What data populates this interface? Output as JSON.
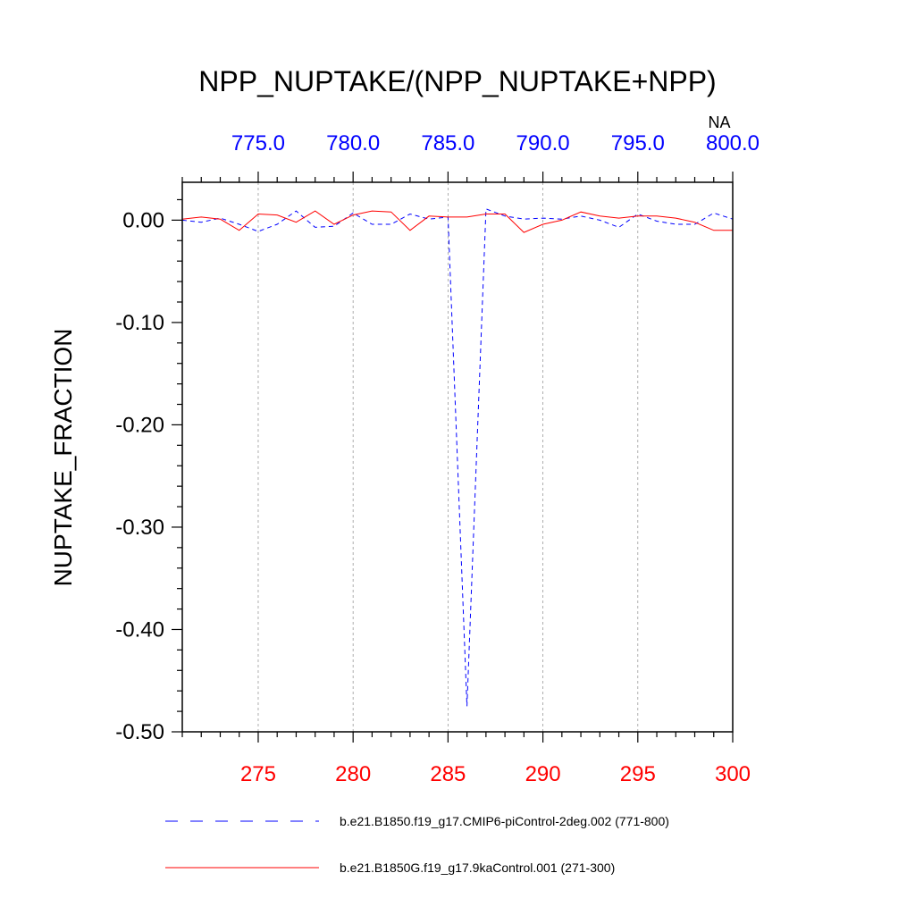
{
  "chart_data": {
    "type": "line",
    "title": "NPP_NUPTAKE/(NPP_NUPTAKE+NPP)",
    "ylabel": "NUPTAKE_FRACTION",
    "top_axis_annotation": "NA",
    "ylim": [
      -0.5,
      0.037
    ],
    "yticks": [
      0.0,
      -0.1,
      -0.2,
      -0.3,
      -0.4,
      -0.5
    ],
    "ytick_labels": [
      "0.00",
      "-0.10",
      "-0.20",
      "-0.30",
      "-0.40",
      "-0.50"
    ],
    "x_bottom": {
      "range": [
        271,
        300
      ],
      "ticks": [
        275,
        280,
        285,
        290,
        295,
        300
      ],
      "tick_labels": [
        "275",
        "280",
        "285",
        "290",
        "295",
        "300"
      ],
      "color": "#ff0000"
    },
    "x_top": {
      "range": [
        771,
        800
      ],
      "ticks": [
        775,
        780,
        785,
        790,
        795,
        800
      ],
      "tick_labels": [
        "775.0",
        "780.0",
        "785.0",
        "790.0",
        "795.0",
        "800.0"
      ],
      "color": "#0000ff"
    },
    "grid": "vertical dashed at major x ticks",
    "series": [
      {
        "name": "b.e21.B1850.f19_g17.CMIP6-piControl-2deg.002 (771-800)",
        "axis": "top",
        "color": "#0000ff",
        "dash": "dashed",
        "x": [
          771,
          772,
          773,
          774,
          775,
          776,
          777,
          778,
          779,
          780,
          781,
          782,
          783,
          784,
          785,
          786,
          787,
          788,
          789,
          790,
          791,
          792,
          793,
          794,
          795,
          796,
          797,
          798,
          799,
          800
        ],
        "values": [
          0.0,
          -0.002,
          0.002,
          -0.004,
          -0.011,
          -0.004,
          0.009,
          -0.007,
          -0.006,
          0.007,
          -0.004,
          -0.004,
          0.006,
          0.001,
          0.003,
          -0.475,
          0.011,
          0.004,
          0.001,
          0.002,
          0.001,
          0.004,
          0.0,
          -0.007,
          0.006,
          -0.001,
          -0.004,
          -0.004,
          0.007,
          0.001
        ]
      },
      {
        "name": "b.e21.B1850G.f19_g17.9kaControl.001 (271-300)",
        "axis": "bottom",
        "color": "#ff0000",
        "dash": "solid",
        "x": [
          271,
          272,
          273,
          274,
          275,
          276,
          277,
          278,
          279,
          280,
          281,
          282,
          283,
          284,
          285,
          286,
          287,
          288,
          289,
          290,
          291,
          292,
          293,
          294,
          295,
          296,
          297,
          298,
          299,
          300
        ],
        "values": [
          0.001,
          0.003,
          0.001,
          -0.01,
          0.006,
          0.005,
          -0.002,
          0.009,
          -0.004,
          0.005,
          0.009,
          0.008,
          -0.01,
          0.004,
          0.003,
          0.003,
          0.006,
          0.006,
          -0.012,
          -0.004,
          0.0,
          0.008,
          0.004,
          0.002,
          0.004,
          0.004,
          0.002,
          -0.002,
          -0.01,
          -0.01
        ]
      }
    ],
    "legend": {
      "placement": "bottom",
      "entries": [
        "b.e21.B1850.f19_g17.CMIP6-piControl-2deg.002 (771-800)",
        "b.e21.B1850G.f19_g17.9kaControl.001 (271-300)"
      ]
    }
  }
}
